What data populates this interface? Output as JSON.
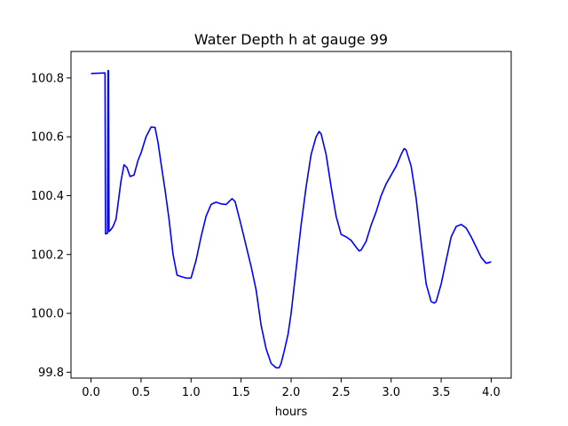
{
  "chart_data": {
    "type": "line",
    "title": "Water Depth h at gauge 99",
    "xlabel": "hours",
    "ylabel": "",
    "xlim": [
      -0.2,
      4.2
    ],
    "ylim": [
      99.78,
      100.89
    ],
    "grid": false,
    "x_ticks": [
      0.0,
      0.5,
      1.0,
      1.5,
      2.0,
      2.5,
      3.0,
      3.5,
      4.0
    ],
    "x_tick_labels": [
      "0.0",
      "0.5",
      "1.0",
      "1.5",
      "2.0",
      "2.5",
      "3.0",
      "3.5",
      "4.0"
    ],
    "y_ticks": [
      99.8,
      100.0,
      100.2,
      100.4,
      100.6,
      100.8
    ],
    "y_tick_labels": [
      "99.8",
      "100.0",
      "100.2",
      "100.4",
      "100.6",
      "100.8"
    ],
    "series": [
      {
        "name": "",
        "color": "#0000ff",
        "x": [
          0.0,
          0.14,
          0.145,
          0.165,
          0.17,
          0.175,
          0.18,
          0.2,
          0.22,
          0.25,
          0.3,
          0.33,
          0.36,
          0.39,
          0.43,
          0.47,
          0.5,
          0.55,
          0.6,
          0.64,
          0.67,
          0.7,
          0.74,
          0.78,
          0.82,
          0.86,
          0.9,
          0.95,
          1.0,
          1.05,
          1.1,
          1.15,
          1.2,
          1.25,
          1.3,
          1.35,
          1.38,
          1.41,
          1.44,
          1.5,
          1.55,
          1.6,
          1.65,
          1.7,
          1.75,
          1.8,
          1.85,
          1.88,
          1.9,
          1.93,
          1.97,
          2.0,
          2.05,
          2.1,
          2.15,
          2.2,
          2.25,
          2.28,
          2.3,
          2.35,
          2.4,
          2.45,
          2.5,
          2.55,
          2.6,
          2.65,
          2.68,
          2.7,
          2.75,
          2.8,
          2.85,
          2.9,
          2.95,
          3.0,
          3.05,
          3.1,
          3.13,
          3.15,
          3.2,
          3.25,
          3.3,
          3.35,
          3.4,
          3.43,
          3.45,
          3.5,
          3.55,
          3.6,
          3.65,
          3.7,
          3.75,
          3.8,
          3.85,
          3.9,
          3.95,
          4.0
        ],
        "y": [
          100.815,
          100.817,
          100.27,
          100.272,
          100.825,
          100.825,
          100.278,
          100.285,
          100.295,
          100.32,
          100.45,
          100.505,
          100.495,
          100.465,
          100.47,
          100.52,
          100.545,
          100.6,
          100.633,
          100.632,
          100.58,
          100.51,
          100.42,
          100.32,
          100.2,
          100.13,
          100.125,
          100.12,
          100.12,
          100.18,
          100.26,
          100.33,
          100.37,
          100.378,
          100.372,
          100.37,
          100.38,
          100.39,
          100.38,
          100.3,
          100.23,
          100.16,
          100.08,
          99.96,
          99.88,
          99.83,
          99.815,
          99.815,
          99.83,
          99.87,
          99.93,
          100.0,
          100.15,
          100.3,
          100.43,
          100.54,
          100.6,
          100.618,
          100.61,
          100.54,
          100.43,
          100.33,
          100.268,
          100.26,
          100.248,
          100.225,
          100.212,
          100.215,
          100.245,
          100.3,
          100.345,
          100.4,
          100.44,
          100.47,
          100.5,
          100.54,
          100.56,
          100.555,
          100.5,
          100.39,
          100.24,
          100.1,
          100.04,
          100.035,
          100.04,
          100.1,
          100.18,
          100.26,
          100.295,
          100.302,
          100.29,
          100.26,
          100.225,
          100.19,
          100.17,
          100.175
        ]
      }
    ]
  }
}
